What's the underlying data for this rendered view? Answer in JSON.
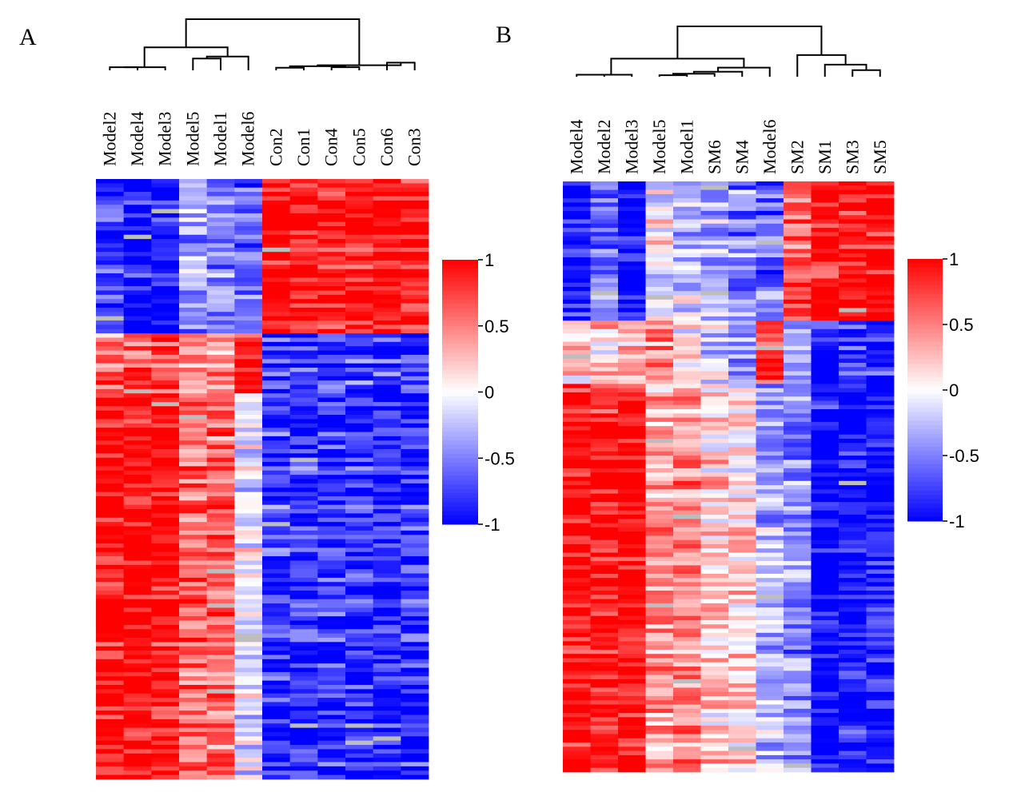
{
  "chart_data": [
    {
      "type": "heatmap",
      "panel_label": "A",
      "columns": [
        "Model2",
        "Model4",
        "Model3",
        "Model5",
        "Model1",
        "Model6",
        "Con2",
        "Con1",
        "Con4",
        "Con5",
        "Con6",
        "Con3"
      ],
      "n_rows": 140,
      "value_range": [
        -1,
        1
      ],
      "colorbar": {
        "ticks": [
          1,
          0.5,
          0,
          -0.5,
          -1
        ],
        "tick_labels": [
          "1",
          "0.5",
          "0",
          "-0.5",
          "-1"
        ]
      },
      "colors": {
        "low": "#0000ff",
        "mid": "#ffffff",
        "high": "#ff0000",
        "missing": "#bdbdbd"
      },
      "blocks": [
        {
          "rows": 36,
          "col_means": [
            -0.8,
            -0.95,
            -1.0,
            -0.4,
            -0.45,
            -0.55,
            0.95,
            0.9,
            0.9,
            0.9,
            0.95,
            0.9
          ]
        },
        {
          "rows": 14,
          "col_means": [
            0.55,
            0.65,
            0.75,
            0.45,
            0.4,
            0.95,
            -0.7,
            -0.75,
            -0.7,
            -0.75,
            -0.75,
            -0.8
          ]
        },
        {
          "rows": 90,
          "col_means": [
            1.0,
            1.0,
            0.95,
            0.6,
            0.6,
            -0.05,
            -0.75,
            -0.8,
            -0.8,
            -0.8,
            -0.85,
            -0.85
          ]
        }
      ],
      "dendrogram": {
        "leaf_order": [
          "Model2",
          "Model4",
          "Model3",
          "Model5",
          "Model1",
          "Model6",
          "Con2",
          "Con1",
          "Con4",
          "Con5",
          "Con6",
          "Con3"
        ],
        "merges": [
          {
            "a": "L6",
            "b": "L7",
            "h": 0.05
          },
          {
            "a": "L8",
            "b": "L9",
            "h": 0.06
          },
          {
            "a": "N0",
            "b": "N1",
            "h": 0.08
          },
          {
            "a": "L10",
            "b": "L11",
            "h": 0.15
          },
          {
            "a": "N2",
            "b": "N3",
            "h": 0.1
          },
          {
            "a": "L0",
            "b": "L1",
            "h": 0.06
          },
          {
            "a": "N5",
            "b": "L2",
            "h": 0.06
          },
          {
            "a": "L3",
            "b": "L4",
            "h": 0.23
          },
          {
            "a": "N7",
            "b": "L5",
            "h": 0.27
          },
          {
            "a": "N6",
            "b": "N8",
            "h": 0.45
          },
          {
            "a": "N9",
            "b": "N4",
            "h": 1.0
          }
        ]
      }
    },
    {
      "type": "heatmap",
      "panel_label": "B",
      "columns": [
        "Model4",
        "Model2",
        "Model3",
        "Model5",
        "Model1",
        "SM6",
        "SM4",
        "Model6",
        "SM2",
        "SM1",
        "SM3",
        "SM5"
      ],
      "n_rows": 140,
      "value_range": [
        -1,
        1
      ],
      "colorbar": {
        "ticks": [
          1,
          0.5,
          0,
          -0.5,
          -1
        ],
        "tick_labels": [
          "1",
          "0.5",
          "0",
          "-0.5",
          "-1"
        ]
      },
      "colors": {
        "low": "#0000ff",
        "mid": "#ffffff",
        "high": "#ff0000",
        "missing": "#bdbdbd"
      },
      "blocks": [
        {
          "rows": 33,
          "col_means": [
            -0.95,
            -0.55,
            -1.0,
            -0.05,
            -0.2,
            -0.35,
            -0.45,
            -0.55,
            0.65,
            1.0,
            0.95,
            1.0
          ]
        },
        {
          "rows": 15,
          "col_means": [
            0.15,
            0.2,
            0.3,
            0.45,
            0.05,
            -0.1,
            -0.45,
            0.85,
            -0.45,
            -0.95,
            -0.85,
            -0.85
          ]
        },
        {
          "rows": 92,
          "col_means": [
            1.0,
            0.9,
            1.0,
            0.4,
            0.45,
            0.2,
            0.15,
            -0.3,
            -0.5,
            -1.0,
            -0.95,
            -0.95
          ]
        }
      ],
      "dendrogram": {
        "leaf_order": [
          "Model4",
          "Model2",
          "Model3",
          "Model5",
          "Model1",
          "SM6",
          "SM4",
          "Model6",
          "SM2",
          "SM1",
          "SM3",
          "SM5"
        ],
        "merges": [
          {
            "a": "L0",
            "b": "L1",
            "h": 0.04
          },
          {
            "a": "N0",
            "b": "L2",
            "h": 0.04
          },
          {
            "a": "L3",
            "b": "L4",
            "h": 0.03
          },
          {
            "a": "N2",
            "b": "L5",
            "h": 0.06
          },
          {
            "a": "N3",
            "b": "L6",
            "h": 0.1
          },
          {
            "a": "N4",
            "b": "L7",
            "h": 0.18
          },
          {
            "a": "N1",
            "b": "N5",
            "h": 0.36
          },
          {
            "a": "L10",
            "b": "L11",
            "h": 0.13
          },
          {
            "a": "L9",
            "b": "N7",
            "h": 0.24
          },
          {
            "a": "L8",
            "b": "N8",
            "h": 0.43
          },
          {
            "a": "N6",
            "b": "N9",
            "h": 1.0
          }
        ]
      }
    }
  ]
}
